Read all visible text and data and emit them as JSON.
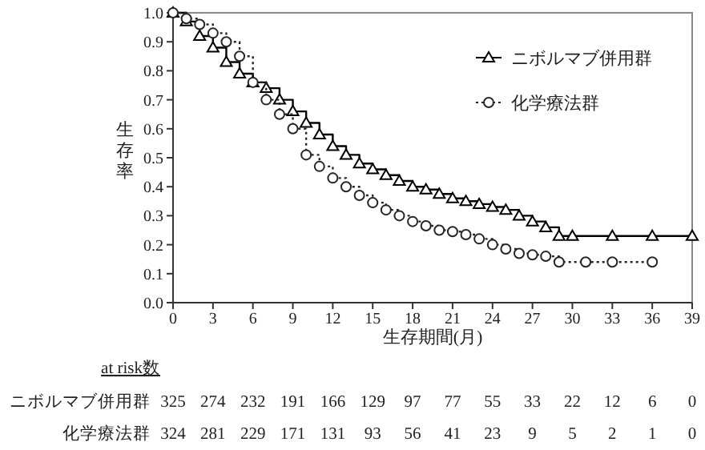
{
  "chart_data": {
    "type": "step",
    "ylabel": "生存率",
    "xlabel": "生存期間(月)",
    "xlim": [
      0,
      39
    ],
    "xticks": [
      0,
      3,
      6,
      9,
      12,
      15,
      18,
      21,
      24,
      27,
      30,
      33,
      36,
      39
    ],
    "ylim": [
      0,
      1
    ],
    "yticks": [
      {
        "value": 0,
        "label": "0.0"
      },
      {
        "value": 0.1,
        "label": "0.1"
      },
      {
        "value": 0.2,
        "label": "0.2"
      },
      {
        "value": 0.3,
        "label": "0.3"
      },
      {
        "value": 0.4,
        "label": "0.4"
      },
      {
        "value": 0.5,
        "label": "0.5"
      },
      {
        "value": 0.6,
        "label": "0.6"
      },
      {
        "value": 0.7,
        "label": "0.7"
      },
      {
        "value": 0.8,
        "label": "0.8"
      },
      {
        "value": 0.9,
        "label": "0.9"
      },
      {
        "value": 1,
        "label": "1.0"
      }
    ],
    "grid": false,
    "legend": "top right",
    "series": [
      {
        "name": "ニボルマブ併用群",
        "color": "#000000",
        "marker": "triangle",
        "line_style": "solid",
        "x": [
          0,
          1,
          2,
          3,
          4,
          5,
          6,
          7,
          8,
          9,
          10,
          11,
          12,
          13,
          14,
          15,
          16,
          17,
          18,
          19,
          20,
          21,
          22,
          23,
          24,
          25,
          26,
          27,
          28,
          29,
          30,
          33,
          36,
          39
        ],
        "values": [
          1.0,
          0.97,
          0.92,
          0.88,
          0.83,
          0.79,
          0.76,
          0.74,
          0.7,
          0.66,
          0.62,
          0.58,
          0.54,
          0.51,
          0.48,
          0.46,
          0.44,
          0.42,
          0.4,
          0.39,
          0.375,
          0.36,
          0.35,
          0.34,
          0.33,
          0.32,
          0.3,
          0.28,
          0.26,
          0.23,
          0.23,
          0.23,
          0.23,
          0.23
        ]
      },
      {
        "name": "化学療法群",
        "color": "#262626",
        "marker": "circle",
        "line_style": "dotted",
        "x": [
          0,
          1,
          2,
          3,
          4,
          5,
          6,
          7,
          8,
          9,
          10,
          11,
          12,
          13,
          14,
          15,
          16,
          17,
          18,
          19,
          20,
          21,
          22,
          23,
          24,
          25,
          26,
          27,
          28,
          29,
          31,
          33,
          36
        ],
        "values": [
          1.0,
          0.98,
          0.96,
          0.93,
          0.9,
          0.85,
          0.76,
          0.7,
          0.65,
          0.6,
          0.51,
          0.47,
          0.43,
          0.4,
          0.37,
          0.345,
          0.32,
          0.3,
          0.28,
          0.265,
          0.25,
          0.245,
          0.235,
          0.22,
          0.2,
          0.185,
          0.17,
          0.165,
          0.16,
          0.14,
          0.14,
          0.14,
          0.14
        ]
      }
    ],
    "annotations": [
      "at risk数",
      "ニボルマブ併用群 325 274 232 191 166 129 97 77 55 33 22 12 6 0",
      "化学療法群 324 281 229 171 131 93 56 41 23 9 5 2 1 0"
    ]
  }
}
